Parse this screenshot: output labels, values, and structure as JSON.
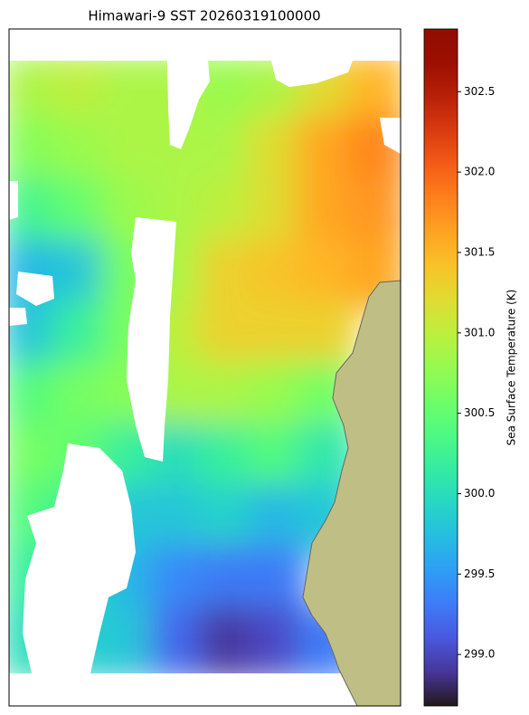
{
  "chart_data": {
    "type": "heatmap",
    "title": "Himawari-9 SST 20260319100000",
    "colorbar_label": "Sea Surface Temperature (K)",
    "colormap": "turbo",
    "clim": [
      298.68,
      302.89
    ],
    "cticks": [
      {
        "value": 299.0,
        "label": "299.0"
      },
      {
        "value": 299.5,
        "label": "299.5"
      },
      {
        "value": 300.0,
        "label": "300.0"
      },
      {
        "value": 300.5,
        "label": "300.5"
      },
      {
        "value": 301.0,
        "label": "301.0"
      },
      {
        "value": 301.5,
        "label": "301.5"
      },
      {
        "value": 302.0,
        "label": "302.0"
      },
      {
        "value": 302.5,
        "label": "302.5"
      }
    ],
    "z": [
      [
        300.9,
        301.0,
        300.9,
        300.9,
        300.8,
        300.9,
        301.2,
        301.5
      ],
      [
        300.7,
        300.8,
        300.9,
        300.9,
        300.9,
        301.2,
        301.6,
        301.8
      ],
      [
        300.3,
        300.5,
        300.8,
        300.9,
        301.0,
        301.2,
        301.6,
        301.7
      ],
      [
        299.7,
        299.8,
        300.6,
        300.9,
        301.3,
        301.4,
        301.5,
        301.6
      ],
      [
        299.8,
        300.2,
        300.6,
        301.0,
        301.3,
        301.3,
        301.3,
        null
      ],
      [
        300.4,
        300.6,
        300.7,
        300.9,
        300.9,
        300.8,
        300.6,
        null
      ],
      [
        300.6,
        300.5,
        300.2,
        300.0,
        300.2,
        300.4,
        300.1,
        null
      ],
      [
        300.4,
        300.2,
        299.8,
        299.8,
        299.9,
        299.7,
        299.8,
        null
      ],
      [
        300.2,
        300.0,
        299.7,
        299.4,
        299.3,
        299.3,
        null,
        null
      ],
      [
        300.0,
        299.9,
        299.8,
        299.2,
        298.9,
        299.0,
        299.3,
        null
      ]
    ]
  }
}
